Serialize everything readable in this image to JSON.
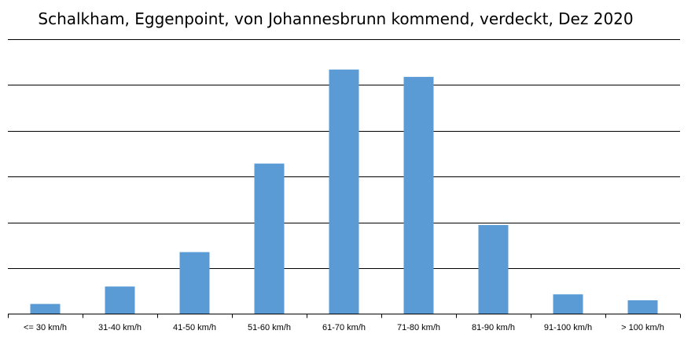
{
  "chart_data": {
    "type": "bar",
    "title": "Schalkham, Eggenpoint, von Johannesbrunn kommend, verdeckt, Dez 2020",
    "xlabel": "",
    "ylabel": "",
    "categories": [
      "<= 30 km/h",
      "31-40 km/h",
      "41-50 km/h",
      "51-60 km/h",
      "61-70 km/h",
      "71-80 km/h",
      "81-90 km/h",
      "91-100 km/h",
      "> 100 km/h"
    ],
    "values": [
      2.2,
      6.0,
      13.5,
      32.8,
      53.3,
      51.7,
      19.4,
      4.3,
      3.0
    ],
    "ylim": [
      0,
      60
    ],
    "y_gridlines": [
      10,
      20,
      30,
      40,
      50,
      60
    ],
    "grid": true,
    "y_tick_labels": false,
    "legend": "none",
    "bar_color": "#5b9bd5",
    "grid_color": "#000000"
  }
}
